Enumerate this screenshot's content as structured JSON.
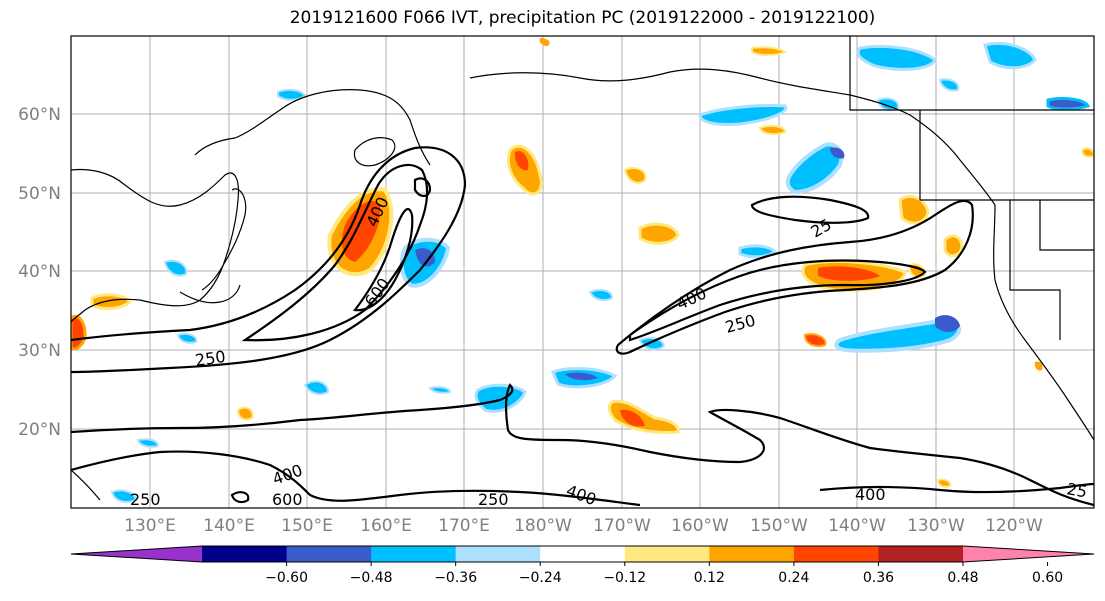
{
  "title": "2019121600 F066 IVT, precipitation PC (2019122000 - 2019122100)",
  "lat_ticks": [
    {
      "label": "60°N",
      "value": 60
    },
    {
      "label": "50°N",
      "value": 50
    },
    {
      "label": "40°N",
      "value": 40
    },
    {
      "label": "30°N",
      "value": 30
    },
    {
      "label": "20°N",
      "value": 20
    }
  ],
  "lon_ticks": [
    {
      "label": "130°E",
      "value": 130
    },
    {
      "label": "140°E",
      "value": 140
    },
    {
      "label": "150°E",
      "value": 150
    },
    {
      "label": "160°E",
      "value": 160
    },
    {
      "label": "170°E",
      "value": 170
    },
    {
      "label": "180°W",
      "value": 180
    },
    {
      "label": "170°W",
      "value": 190
    },
    {
      "label": "160°W",
      "value": 200
    },
    {
      "label": "150°W",
      "value": 210
    },
    {
      "label": "140°W",
      "value": 220
    },
    {
      "label": "130°W",
      "value": 230
    },
    {
      "label": "120°W",
      "value": 240
    }
  ],
  "contour_labels": [
    "400",
    "600",
    "250",
    "25",
    "250",
    "400",
    "250",
    "400",
    "600",
    "250",
    "400",
    "400",
    "25"
  ],
  "colorbar": {
    "colors": [
      "#9932CC",
      "#00008B",
      "#3A5BCC",
      "#00BFFF",
      "#ADDFFF",
      "#FFFFFF",
      "#FFE97F",
      "#FFA500",
      "#FF4500",
      "#B22222",
      "#FF82AB"
    ],
    "tick_labels": [
      "−0.60",
      "−0.48",
      "−0.36",
      "−0.24",
      "−0.12",
      "0.12",
      "0.24",
      "0.36",
      "0.48",
      "0.60"
    ],
    "tick_values": [
      -0.6,
      -0.48,
      -0.36,
      -0.24,
      -0.12,
      0.12,
      0.24,
      0.36,
      0.48,
      0.6
    ]
  }
}
